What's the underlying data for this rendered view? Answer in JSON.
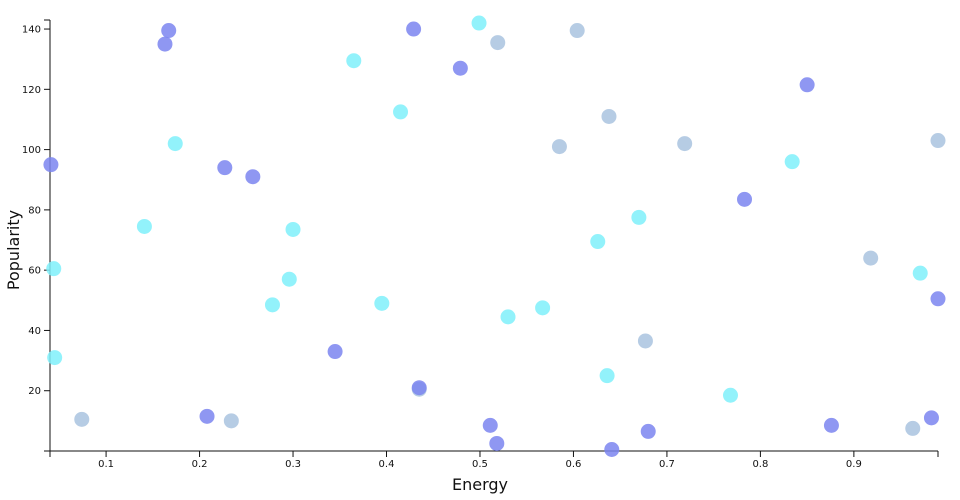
{
  "chart_data": {
    "type": "scatter",
    "title": "",
    "xlabel": "Energy",
    "ylabel": "Popularity",
    "xlim": [
      0.04,
      0.99
    ],
    "ylim": [
      0,
      143
    ],
    "x_ticks": [
      0.1,
      0.2,
      0.3,
      0.4,
      0.5,
      0.6,
      0.7,
      0.8,
      0.9
    ],
    "y_ticks": [
      20,
      40,
      60,
      80,
      100,
      120,
      140
    ],
    "grid": false,
    "legend": "none",
    "colors": {
      "blue": "#7b85f0",
      "cyan": "#7ff0fa",
      "steel": "#a9c3df"
    },
    "points": [
      {
        "x": 0.041,
        "y": 95,
        "c": "blue"
      },
      {
        "x": 0.044,
        "y": 60.5,
        "c": "cyan"
      },
      {
        "x": 0.045,
        "y": 31,
        "c": "cyan"
      },
      {
        "x": 0.074,
        "y": 10.5,
        "c": "steel"
      },
      {
        "x": 0.141,
        "y": 74.5,
        "c": "cyan"
      },
      {
        "x": 0.163,
        "y": 135,
        "c": "blue"
      },
      {
        "x": 0.167,
        "y": 139.5,
        "c": "blue"
      },
      {
        "x": 0.174,
        "y": 102,
        "c": "cyan"
      },
      {
        "x": 0.208,
        "y": 11.5,
        "c": "blue"
      },
      {
        "x": 0.227,
        "y": 94,
        "c": "blue"
      },
      {
        "x": 0.234,
        "y": 10,
        "c": "steel"
      },
      {
        "x": 0.257,
        "y": 91,
        "c": "blue"
      },
      {
        "x": 0.278,
        "y": 48.5,
        "c": "cyan"
      },
      {
        "x": 0.296,
        "y": 57,
        "c": "cyan"
      },
      {
        "x": 0.3,
        "y": 73.5,
        "c": "cyan"
      },
      {
        "x": 0.345,
        "y": 33,
        "c": "blue"
      },
      {
        "x": 0.365,
        "y": 129.5,
        "c": "cyan"
      },
      {
        "x": 0.395,
        "y": 49,
        "c": "cyan"
      },
      {
        "x": 0.415,
        "y": 112.5,
        "c": "cyan"
      },
      {
        "x": 0.429,
        "y": 140,
        "c": "blue"
      },
      {
        "x": 0.435,
        "y": 20.5,
        "c": "steel"
      },
      {
        "x": 0.435,
        "y": 21,
        "c": "blue"
      },
      {
        "x": 0.479,
        "y": 127,
        "c": "blue"
      },
      {
        "x": 0.499,
        "y": 142,
        "c": "cyan"
      },
      {
        "x": 0.511,
        "y": 8.5,
        "c": "blue"
      },
      {
        "x": 0.518,
        "y": 2.5,
        "c": "blue"
      },
      {
        "x": 0.519,
        "y": 135.5,
        "c": "steel"
      },
      {
        "x": 0.53,
        "y": 44.5,
        "c": "cyan"
      },
      {
        "x": 0.567,
        "y": 47.5,
        "c": "cyan"
      },
      {
        "x": 0.585,
        "y": 101,
        "c": "steel"
      },
      {
        "x": 0.604,
        "y": 139.5,
        "c": "steel"
      },
      {
        "x": 0.626,
        "y": 69.5,
        "c": "cyan"
      },
      {
        "x": 0.636,
        "y": 25,
        "c": "cyan"
      },
      {
        "x": 0.638,
        "y": 111,
        "c": "steel"
      },
      {
        "x": 0.641,
        "y": 0.5,
        "c": "blue"
      },
      {
        "x": 0.67,
        "y": 77.5,
        "c": "cyan"
      },
      {
        "x": 0.677,
        "y": 36.5,
        "c": "steel"
      },
      {
        "x": 0.68,
        "y": 6.5,
        "c": "blue"
      },
      {
        "x": 0.719,
        "y": 102,
        "c": "steel"
      },
      {
        "x": 0.768,
        "y": 18.5,
        "c": "cyan"
      },
      {
        "x": 0.783,
        "y": 83.5,
        "c": "blue"
      },
      {
        "x": 0.834,
        "y": 96,
        "c": "cyan"
      },
      {
        "x": 0.85,
        "y": 121.5,
        "c": "blue"
      },
      {
        "x": 0.876,
        "y": 8.5,
        "c": "blue"
      },
      {
        "x": 0.918,
        "y": 64,
        "c": "steel"
      },
      {
        "x": 0.963,
        "y": 7.5,
        "c": "steel"
      },
      {
        "x": 0.971,
        "y": 59,
        "c": "cyan"
      },
      {
        "x": 0.983,
        "y": 11,
        "c": "blue"
      },
      {
        "x": 0.99,
        "y": 50.5,
        "c": "blue"
      },
      {
        "x": 0.99,
        "y": 103,
        "c": "steel"
      }
    ]
  }
}
